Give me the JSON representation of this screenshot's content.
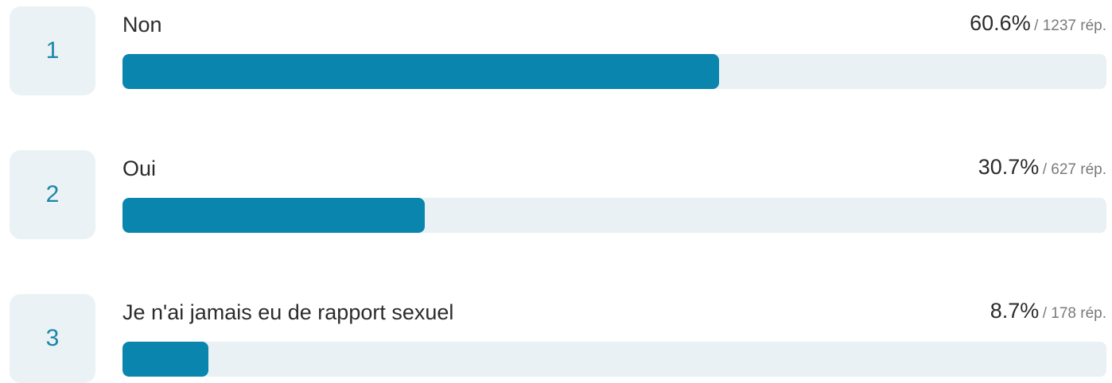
{
  "chart_data": {
    "type": "bar",
    "orientation": "horizontal",
    "xlim": [
      0,
      100
    ],
    "colors": {
      "bar": "#0a85ad",
      "track": "#e9f1f4",
      "rank_box": "#ebf2f5",
      "rank_text": "#1a86a9"
    },
    "items": [
      {
        "rank": "1",
        "label": "Non",
        "percent_text": "60.6%",
        "count_text": "/ 1237 rép.",
        "value": 60.6
      },
      {
        "rank": "2",
        "label": "Oui",
        "percent_text": "30.7%",
        "count_text": "/ 627 rép.",
        "value": 30.7
      },
      {
        "rank": "3",
        "label": "Je n'ai jamais eu de rapport sexuel",
        "percent_text": "8.7%",
        "count_text": "/ 178 rép.",
        "value": 8.7
      }
    ]
  }
}
